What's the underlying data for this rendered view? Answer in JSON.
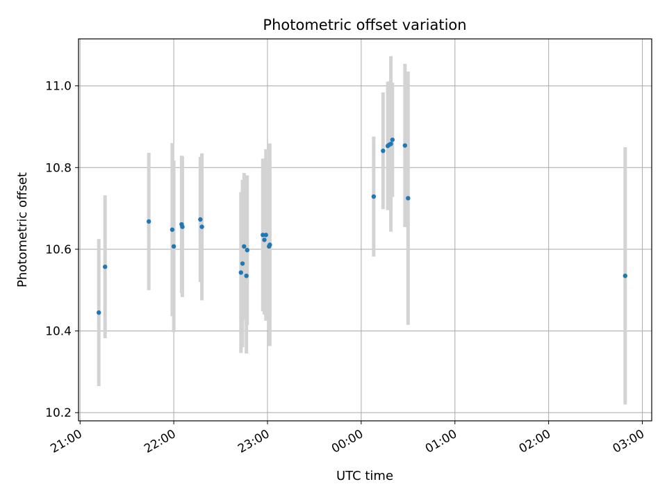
{
  "chart_data": {
    "type": "scatter",
    "title": "Photometric offset variation",
    "xlabel": "UTC time",
    "ylabel": "Photometric offset",
    "xlim": [
      "20:59",
      "03:06"
    ],
    "ylim": [
      10.18,
      11.115
    ],
    "xticks": [
      {
        "t": "21:00",
        "label": "21:00"
      },
      {
        "t": "22:00",
        "label": "22:00"
      },
      {
        "t": "23:00",
        "label": "23:00"
      },
      {
        "t": "00:00",
        "label": "00:00"
      },
      {
        "t": "01:00",
        "label": "01:00"
      },
      {
        "t": "02:00",
        "label": "02:00"
      },
      {
        "t": "03:00",
        "label": "03:00"
      }
    ],
    "yticks": [
      {
        "v": 10.2,
        "label": "10.2"
      },
      {
        "v": 10.4,
        "label": "10.4"
      },
      {
        "v": 10.6,
        "label": "10.6"
      },
      {
        "v": 10.8,
        "label": "10.8"
      },
      {
        "v": 11.0,
        "label": "11.0"
      }
    ],
    "grid": true,
    "colors": {
      "points": "#1f77b4",
      "errorbars": "#d3d3d3",
      "grid": "#b0b0b0"
    },
    "points": [
      {
        "x": "21:12",
        "y": 10.445,
        "err": 0.18
      },
      {
        "x": "21:16",
        "y": 10.557,
        "err": 0.175
      },
      {
        "x": "21:44",
        "y": 10.668,
        "err": 0.168
      },
      {
        "x": "21:59",
        "y": 10.648,
        "err": 0.212
      },
      {
        "x": "22:00",
        "y": 10.607,
        "err": 0.21
      },
      {
        "x": "22:05",
        "y": 10.661,
        "err": 0.168
      },
      {
        "x": "22:05.5",
        "y": 10.655,
        "err": 0.172
      },
      {
        "x": "22:17",
        "y": 10.673,
        "err": 0.153
      },
      {
        "x": "22:18",
        "y": 10.655,
        "err": 0.18
      },
      {
        "x": "22:43",
        "y": 10.543,
        "err": 0.197
      },
      {
        "x": "22:44",
        "y": 10.565,
        "err": 0.205
      },
      {
        "x": "22:45",
        "y": 10.607,
        "err": 0.18
      },
      {
        "x": "22:46.5",
        "y": 10.535,
        "err": 0.19
      },
      {
        "x": "22:47",
        "y": 10.598,
        "err": 0.183
      },
      {
        "x": "22:57",
        "y": 10.635,
        "err": 0.187
      },
      {
        "x": "22:58",
        "y": 10.623,
        "err": 0.183
      },
      {
        "x": "22:59",
        "y": 10.635,
        "err": 0.21
      },
      {
        "x": "23:01",
        "y": 10.607,
        "err": 0.205
      },
      {
        "x": "23:01.5",
        "y": 10.611,
        "err": 0.248
      },
      {
        "x": "00:08",
        "y": 10.729,
        "err": 0.147
      },
      {
        "x": "00:14",
        "y": 10.841,
        "err": 0.143
      },
      {
        "x": "00:17",
        "y": 10.853,
        "err": 0.157
      },
      {
        "x": "00:18",
        "y": 10.856,
        "err": 0.155
      },
      {
        "x": "00:19",
        "y": 10.858,
        "err": 0.215
      },
      {
        "x": "00:20",
        "y": 10.868,
        "err": 0.14
      },
      {
        "x": "00:28",
        "y": 10.854,
        "err": 0.2
      },
      {
        "x": "00:30",
        "y": 10.725,
        "err": 0.31
      },
      {
        "x": "02:49",
        "y": 10.535,
        "err": 0.315
      }
    ]
  }
}
